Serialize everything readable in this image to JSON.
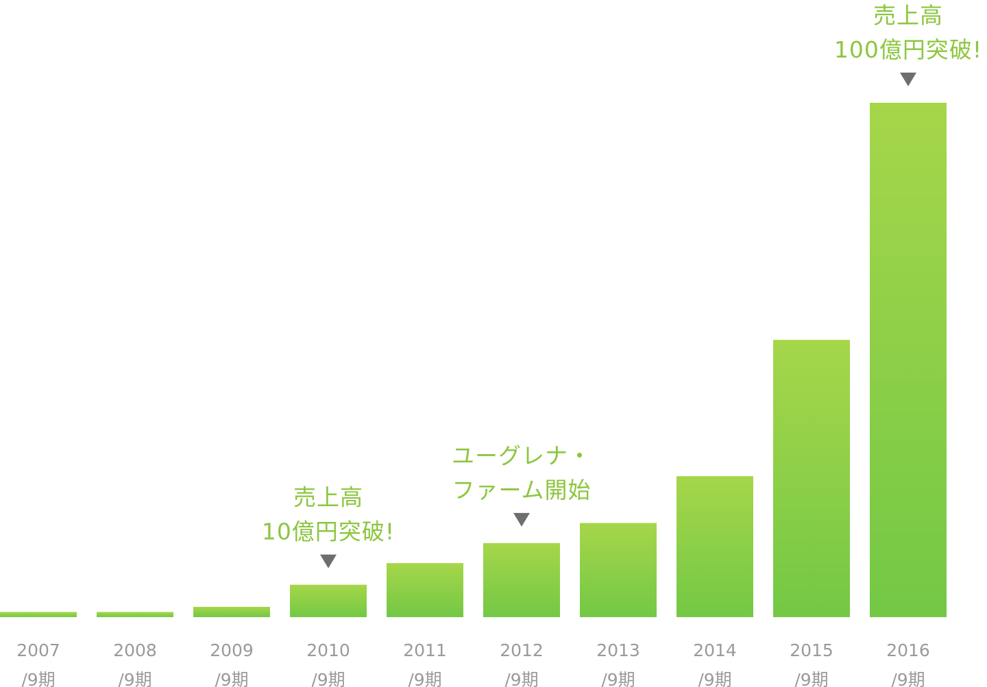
{
  "colors": {
    "bar_top": "#a6d64a",
    "bar_bottom": "#73c845",
    "annotation_text": "#8cc63f",
    "marker": "#6e6e6e",
    "tick_label": "#9a9a9a",
    "background": "#ffffff"
  },
  "chart_data": {
    "type": "bar",
    "title": "",
    "xlabel": "",
    "ylabel": "",
    "categories": [
      [
        "2007",
        "/9期"
      ],
      [
        "2008",
        "/9期"
      ],
      [
        "2009",
        "/9期"
      ],
      [
        "2010",
        "/9期"
      ],
      [
        "2011",
        "/9期"
      ],
      [
        "2012",
        "/9期"
      ],
      [
        "2013",
        "/9期"
      ],
      [
        "2014",
        "/9期"
      ],
      [
        "2015",
        "/9期"
      ],
      [
        "2016",
        "/9期"
      ]
    ],
    "values": [
      1,
      1,
      2,
      6.3,
      10.5,
      14.4,
      18.3,
      27.4,
      53.9,
      100
    ],
    "ylim": [
      0,
      100
    ],
    "grid": false,
    "legend": "none",
    "annotations": [
      {
        "category_index": 3,
        "lines": [
          "売上高",
          "10億円突破!"
        ]
      },
      {
        "category_index": 5,
        "lines": [
          "ユーグレナ・",
          "ファーム開始"
        ]
      },
      {
        "category_index": 9,
        "lines": [
          "売上高",
          "100億円突破!"
        ]
      }
    ]
  }
}
